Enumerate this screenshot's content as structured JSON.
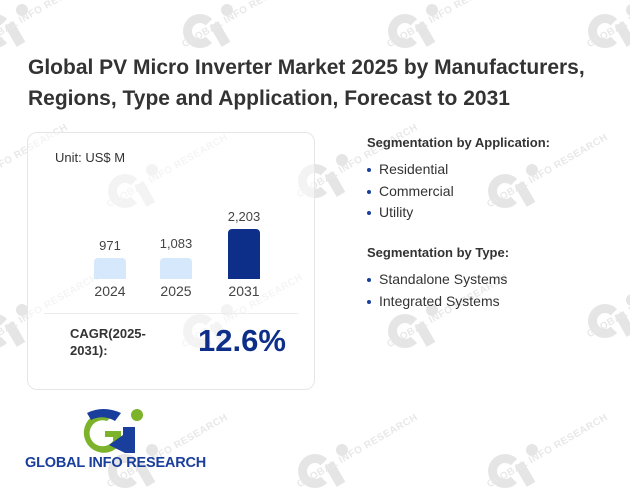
{
  "title": "Global PV Micro Inverter Market 2025 by Manufacturers, Regions, Type and Application, Forecast to 2031",
  "card": {
    "unit_label": "Unit: US$ M",
    "cagr_label": "CAGR(2025-2031):",
    "cagr_value": "12.6%"
  },
  "colors": {
    "bar_light": "#d6e8fb",
    "bar_dark": "#0d2f8a",
    "accent": "#0d2f8a",
    "logo_green": "#7cb32a",
    "logo_blue": "#1a3e9c"
  },
  "chart_data": {
    "type": "bar",
    "title": "",
    "xlabel": "",
    "ylabel": "",
    "unit": "US$ M",
    "categories": [
      "2024",
      "2025",
      "2031"
    ],
    "values": [
      971,
      1083,
      2203
    ],
    "value_labels": [
      "971",
      "1,083",
      "2,203"
    ],
    "highlight": [
      false,
      false,
      true
    ],
    "ylim": [
      0,
      2203
    ],
    "grid": false,
    "legend": "none"
  },
  "segments": [
    {
      "heading": "Segmentation by Application:",
      "items": [
        "Residential",
        "Commercial",
        "Utility"
      ]
    },
    {
      "heading": "Segmentation by Type:",
      "items": [
        "Standalone Systems",
        "Integrated Systems"
      ]
    }
  ],
  "logo": {
    "text": "GLOBAL INFO RESEARCH",
    "icon": "gi-logo-icon"
  },
  "watermark": {
    "text": "GLOBAL INFO RESEARCH",
    "icon": "gi-watermark-icon"
  }
}
